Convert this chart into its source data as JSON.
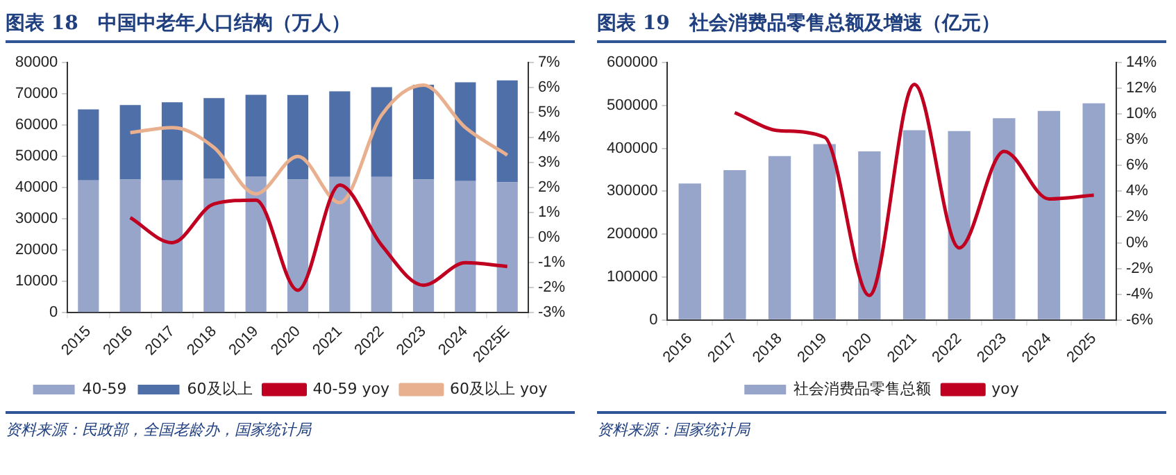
{
  "chart_data": [
    {
      "type": "bar",
      "title": "图表 18　中国中老年人口结构（万人）",
      "stacked": true,
      "grid": false,
      "legend": "bottom",
      "categories": [
        "2015",
        "2016",
        "2017",
        "2018",
        "2019",
        "2020",
        "2021",
        "2022",
        "2023",
        "2024",
        "2025E"
      ],
      "series": [
        {
          "name": "40-59",
          "color": "#97a5cb",
          "values": [
            42300,
            42600,
            42300,
            42900,
            43600,
            42600,
            43400,
            43400,
            42600,
            42100,
            41700
          ]
        },
        {
          "name": "60及以上",
          "color": "#4f6fa8",
          "values": [
            22700,
            23800,
            25000,
            25700,
            26100,
            27000,
            27400,
            28700,
            30300,
            31600,
            32600
          ]
        },
        {
          "name": "40-59 yoy",
          "type": "line",
          "axis": "y2",
          "color": "#c00020",
          "values": [
            null,
            0.8,
            -0.2,
            1.35,
            1.5,
            -2.1,
            2.1,
            -0.3,
            -1.9,
            -1.0,
            -1.15
          ]
        },
        {
          "name": "60及以上 yoy",
          "type": "line",
          "axis": "y2",
          "color": "#e8b08e",
          "values": [
            null,
            4.2,
            4.4,
            3.6,
            1.75,
            3.25,
            1.4,
            4.9,
            6.1,
            4.4,
            3.3
          ]
        }
      ],
      "ylim": [
        0,
        80000
      ],
      "yticks": [
        0,
        10000,
        20000,
        30000,
        40000,
        50000,
        60000,
        70000,
        80000
      ],
      "y2lim": [
        -3,
        7
      ],
      "y2ticks": [
        {
          "value": -3,
          "label": "-3%"
        },
        {
          "value": -2,
          "label": "-2%"
        },
        {
          "value": -1,
          "label": "-1%"
        },
        {
          "value": 0,
          "label": "0%"
        },
        {
          "value": 1,
          "label": "1%"
        },
        {
          "value": 2,
          "label": "2%"
        },
        {
          "value": 3,
          "label": "3%"
        },
        {
          "value": 4,
          "label": "4%"
        },
        {
          "value": 5,
          "label": "5%"
        },
        {
          "value": 6,
          "label": "6%"
        },
        {
          "value": 7,
          "label": "7%"
        }
      ],
      "annotations": [
        "资料来源：民政部，全国老龄办，国家统计局"
      ]
    },
    {
      "type": "bar",
      "title": "图表 19　社会消费品零售总额及增速（亿元）",
      "grid": false,
      "legend": "bottom",
      "categories": [
        "2016",
        "2017",
        "2018",
        "2019",
        "2020",
        "2021",
        "2022",
        "2023",
        "2024",
        "2025"
      ],
      "series": [
        {
          "name": "社会消费品零售总额",
          "color": "#97a5cb",
          "values": [
            318000,
            349000,
            382000,
            410000,
            393000,
            442000,
            440000,
            470000,
            487000,
            505000
          ]
        },
        {
          "name": "yoy",
          "type": "line",
          "axis": "y2",
          "color": "#c00020",
          "values": [
            null,
            10.1,
            8.7,
            8.2,
            -4.1,
            12.3,
            -0.4,
            7.1,
            3.4,
            3.7
          ]
        }
      ],
      "ylim": [
        0,
        600000
      ],
      "yticks": [
        0,
        100000,
        200000,
        300000,
        400000,
        500000,
        600000
      ],
      "y2lim": [
        -6,
        14
      ],
      "y2ticks": [
        {
          "value": -6,
          "label": "-6%"
        },
        {
          "value": -4,
          "label": "-4%"
        },
        {
          "value": -2,
          "label": "-2%"
        },
        {
          "value": 0,
          "label": "0%"
        },
        {
          "value": 2,
          "label": "2%"
        },
        {
          "value": 4,
          "label": "4%"
        },
        {
          "value": 6,
          "label": "6%"
        },
        {
          "value": 8,
          "label": "8%"
        },
        {
          "value": 10,
          "label": "10%"
        },
        {
          "value": 12,
          "label": "12%"
        },
        {
          "value": 14,
          "label": "14%"
        }
      ],
      "annotations": [
        "资料来源：国家统计局"
      ]
    }
  ]
}
